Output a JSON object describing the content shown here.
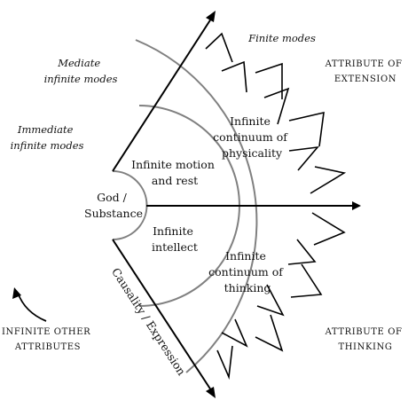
{
  "diagram": {
    "center": {
      "line1": "God /",
      "line2": "Substance"
    },
    "causality_label": "Causality / Expression",
    "regions": {
      "motion_rest": {
        "line1": "Infinite motion",
        "line2": "and rest"
      },
      "intellect": {
        "line1": "Infinite",
        "line2": "intellect"
      },
      "physicality": {
        "line1": "Infinite",
        "line2": "continuum of",
        "line3": "physicality"
      },
      "thinking": {
        "line1": "Infinite",
        "line2": "continuum of",
        "line3": "thinking"
      }
    },
    "modes": {
      "finite": "Finite modes",
      "mediate": {
        "line1": "Mediate",
        "line2": "infinite modes"
      },
      "immediate": {
        "line1": "Immediate",
        "line2": "infinite modes"
      }
    },
    "attributes": {
      "extension": {
        "line1": "ATTRIBUTE OF",
        "line2": "EXTENSION"
      },
      "thinking": {
        "line1": "ATTRIBUTE OF",
        "line2": "THINKING"
      },
      "other": {
        "line1": "INFINITE OTHER",
        "line2": "ATTRIBUTES"
      }
    },
    "colors": {
      "arcs": "#808080",
      "lines": "#000000",
      "text": "#111111"
    }
  }
}
